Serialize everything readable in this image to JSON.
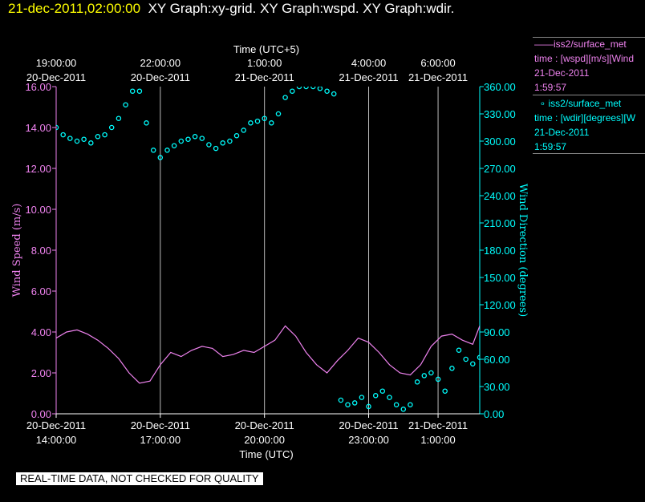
{
  "header": {
    "timestamp": "21-dec-2011,02:00:00",
    "graphs": "XY Graph:xy-grid.  XY Graph:wspd.  XY Graph:wdir."
  },
  "legend": [
    {
      "series": "iss2/surface_met",
      "desc": "time : [wspd][m/s][Wind",
      "date": "21-Dec-2011",
      "time": "1:59:57",
      "color": "#ee82ee",
      "marker": "line"
    },
    {
      "series": "iss2/surface_met",
      "desc": "time : [wdir][degrees][W",
      "date": "21-Dec-2011",
      "time": "1:59:57",
      "color": "#00ffff",
      "marker": "circle"
    }
  ],
  "quality_note": "REAL-TIME DATA, NOT CHECKED FOR QUALITY",
  "chart_data": {
    "type": "line",
    "top_axis": {
      "title": "Time (UTC+5)",
      "ticks": [
        {
          "utc_hour": 14,
          "time": "19:00:00",
          "date": "20-Dec-2011"
        },
        {
          "utc_hour": 17,
          "time": "22:00:00",
          "date": "20-Dec-2011"
        },
        {
          "utc_hour": 20,
          "time": "1:00:00",
          "date": "21-Dec-2011"
        },
        {
          "utc_hour": 23,
          "time": "4:00:00",
          "date": "21-Dec-2011"
        },
        {
          "utc_hour": 25,
          "time": "6:00:00",
          "date": "21-Dec-2011"
        }
      ]
    },
    "bottom_axis": {
      "title": "Time (UTC)",
      "range": [
        "20-Dec-2011 14:00",
        "21-Dec-2011 02:00"
      ],
      "ticks": [
        {
          "utc_hour": 14,
          "date": "20-Dec-2011",
          "time": "14:00:00"
        },
        {
          "utc_hour": 17,
          "date": "20-Dec-2011",
          "time": "17:00:00"
        },
        {
          "utc_hour": 20,
          "date": "20-Dec-2011",
          "time": "20:00:00"
        },
        {
          "utc_hour": 23,
          "date": "20-Dec-2011",
          "time": "23:00:00"
        },
        {
          "utc_hour": 25,
          "date": "21-Dec-2011",
          "time": "1:00:00"
        }
      ]
    },
    "left_axis": {
      "title": "Wind Speed (m/s)",
      "range": [
        0,
        16
      ],
      "ticks": [
        "0.00",
        "2.00",
        "4.00",
        "6.00",
        "8.00",
        "10.00",
        "12.00",
        "14.00",
        "16.00"
      ]
    },
    "right_axis": {
      "title": "Wind Direction (degrees)",
      "range": [
        0,
        360
      ],
      "ticks": [
        "0.00",
        "30.00",
        "60.00",
        "90.00",
        "120.00",
        "150.00",
        "180.00",
        "210.00",
        "240.00",
        "270.00",
        "300.00",
        "330.00",
        "360.00"
      ]
    },
    "grid": "vertical",
    "series": [
      {
        "name": "iss2/surface_met",
        "variable": "wspd",
        "style": "line",
        "axis": "left",
        "color": "#ee82ee",
        "x_utc_hour": [
          14.0,
          14.3,
          14.6,
          14.9,
          15.2,
          15.5,
          15.8,
          16.1,
          16.4,
          16.7,
          17.0,
          17.3,
          17.6,
          17.9,
          18.2,
          18.5,
          18.8,
          19.1,
          19.4,
          19.7,
          20.0,
          20.3,
          20.6,
          20.9,
          21.2,
          21.5,
          21.8,
          22.1,
          22.4,
          22.7,
          23.0,
          23.3,
          23.6,
          23.9,
          24.2,
          24.5,
          24.8,
          25.1,
          25.4,
          25.7,
          26.0,
          26.2
        ],
        "y": [
          3.7,
          4.0,
          4.1,
          3.9,
          3.6,
          3.2,
          2.7,
          2.0,
          1.5,
          1.6,
          2.4,
          3.0,
          2.8,
          3.1,
          3.3,
          3.2,
          2.8,
          2.9,
          3.1,
          3.0,
          3.3,
          3.6,
          4.3,
          3.8,
          3.0,
          2.4,
          2.0,
          2.6,
          3.1,
          3.7,
          3.5,
          3.0,
          2.4,
          2.0,
          1.9,
          2.4,
          3.3,
          3.8,
          3.9,
          3.6,
          3.4,
          4.3
        ]
      },
      {
        "name": "iss2/surface_met",
        "variable": "wdir",
        "style": "circle",
        "axis": "right",
        "color": "#00ffff",
        "x_utc_hour": [
          14.0,
          14.2,
          14.4,
          14.6,
          14.8,
          15.0,
          15.2,
          15.4,
          15.6,
          15.8,
          16.0,
          16.2,
          16.4,
          16.6,
          16.8,
          17.0,
          17.2,
          17.4,
          17.6,
          17.8,
          18.0,
          18.2,
          18.4,
          18.6,
          18.8,
          19.0,
          19.2,
          19.4,
          19.6,
          19.8,
          20.0,
          20.2,
          20.4,
          20.6,
          20.8,
          21.0,
          21.2,
          21.4,
          21.6,
          21.8,
          22.0,
          22.2,
          22.4,
          22.6,
          22.8,
          23.0,
          23.2,
          23.4,
          23.6,
          23.8,
          24.0,
          24.2,
          24.4,
          24.6,
          24.8,
          25.0,
          25.2,
          25.4,
          25.6,
          25.8,
          26.0,
          26.2
        ],
        "y": [
          315,
          307,
          303,
          300,
          302,
          298,
          305,
          307,
          315,
          325,
          340,
          355,
          355,
          320,
          290,
          282,
          290,
          295,
          300,
          302,
          305,
          303,
          296,
          292,
          298,
          300,
          306,
          312,
          320,
          322,
          325,
          320,
          330,
          348,
          355,
          360,
          360,
          360,
          358,
          355,
          352,
          15,
          10,
          12,
          18,
          8,
          20,
          25,
          18,
          10,
          5,
          10,
          35,
          42,
          45,
          38,
          25,
          50,
          70,
          60,
          55,
          62
        ]
      }
    ]
  }
}
